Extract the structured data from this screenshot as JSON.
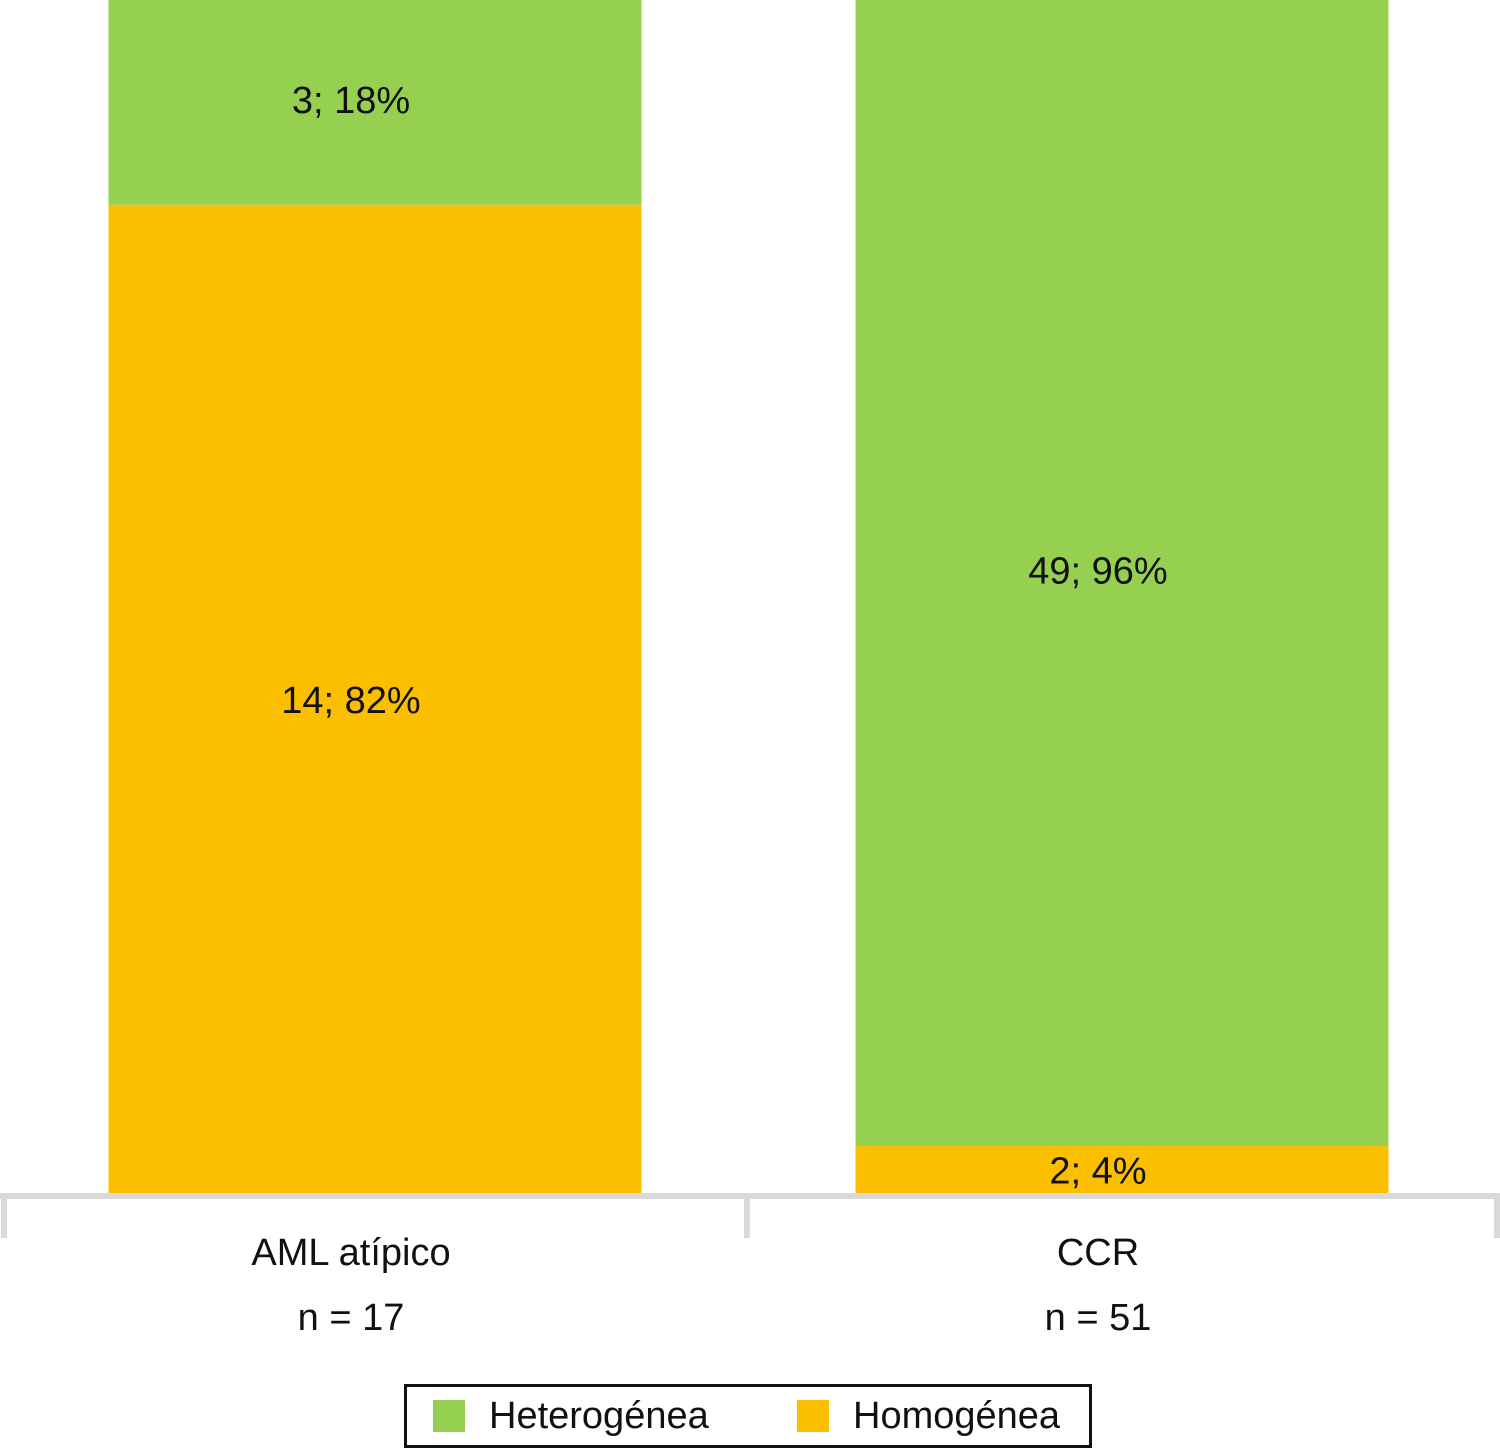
{
  "chart_data": {
    "type": "bar",
    "stacked": true,
    "orientation": "vertical",
    "normalized_percent": true,
    "categories": [
      "AML atípico",
      "CCR"
    ],
    "category_n_labels": [
      "n = 17",
      "n = 51"
    ],
    "series": [
      {
        "name": "Homogénea",
        "color": "#fbbf00",
        "values": [
          14,
          2
        ],
        "percents": [
          82,
          4
        ],
        "labels": [
          "14; 82%",
          "2; 4%"
        ]
      },
      {
        "name": "Heterogénea",
        "color": "#96d050",
        "values": [
          3,
          49
        ],
        "percents": [
          18,
          96
        ],
        "labels": [
          "3; 18%",
          "49; 96%"
        ]
      }
    ],
    "ylim": [
      0,
      100
    ],
    "grid": false,
    "legend_position": "bottom-center"
  },
  "legend": {
    "items": [
      {
        "label": "Heterogénea",
        "color": "#96d050"
      },
      {
        "label": "Homogénea",
        "color": "#fbbf00"
      }
    ]
  }
}
